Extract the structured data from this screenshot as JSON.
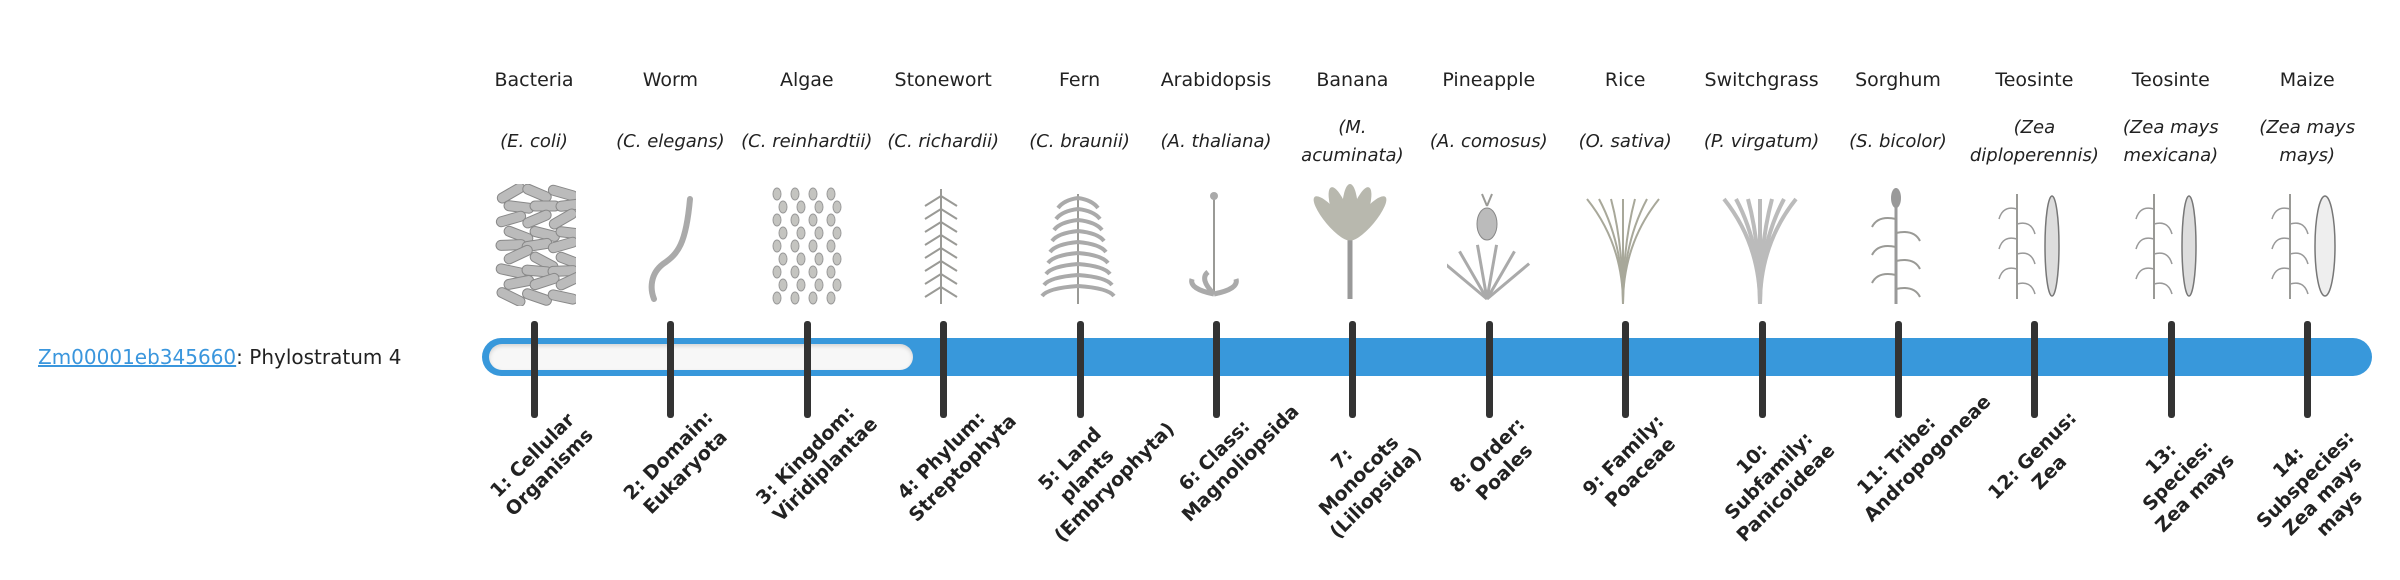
{
  "gene": {
    "id": "Zm00001eb345660",
    "suffix": ": Phylostratum 4",
    "phylostratum": 4
  },
  "colors": {
    "accent": "#3898db",
    "tick": "#333333",
    "empty_track": "#f7f7f7"
  },
  "organisms": [
    {
      "name": "Bacteria",
      "species": "(E. coli)",
      "icon": "bacteria-illustration"
    },
    {
      "name": "Worm",
      "species": "(C. elegans)",
      "icon": "worm-illustration"
    },
    {
      "name": "Algae",
      "species": "(C. reinhardtii)",
      "icon": "algae-illustration"
    },
    {
      "name": "Stonewort",
      "species": "(C. richardii)",
      "icon": "stonewort-illustration"
    },
    {
      "name": "Fern",
      "species": "(C. braunii)",
      "icon": "fern-illustration"
    },
    {
      "name": "Arabidopsis",
      "species": "(A. thaliana)",
      "icon": "arabidopsis-illustration"
    },
    {
      "name": "Banana",
      "species": "(M. acuminata)",
      "icon": "banana-illustration"
    },
    {
      "name": "Pineapple",
      "species": "(A. comosus)",
      "icon": "pineapple-illustration"
    },
    {
      "name": "Rice",
      "species": "(O. sativa)",
      "icon": "rice-illustration"
    },
    {
      "name": "Switchgrass",
      "species": "(P. virgatum)",
      "icon": "switchgrass-illustration"
    },
    {
      "name": "Sorghum",
      "species": "(S. bicolor)",
      "icon": "sorghum-illustration"
    },
    {
      "name": "Teosinte",
      "species": "(Zea diploperennis)",
      "icon": "teosinte-illustration"
    },
    {
      "name": "Teosinte",
      "species": "(Zea mays mexicana)",
      "icon": "teosinte-illustration"
    },
    {
      "name": "Maize",
      "species": "(Zea mays mays)",
      "icon": "maize-illustration"
    }
  ],
  "strata": [
    "1: Cellular Organisms",
    "2: Domain: Eukaryota",
    "3: Kingdom: Viridiplantae",
    "4: Phylum: Streptophyta",
    "5: Land plants (Embryophyta)",
    "6: Class: Magnoliopsida",
    "7: Monocots (Liliopsida)",
    "8: Order: Poales",
    "9: Family: Poaceae",
    "10: Subfamily: Panicoideae",
    "11: Tribe: Andropogoneae",
    "12: Genus: Zea",
    "13: Species: Zea mays",
    "14: Subspecies: Zea mays mays"
  ]
}
